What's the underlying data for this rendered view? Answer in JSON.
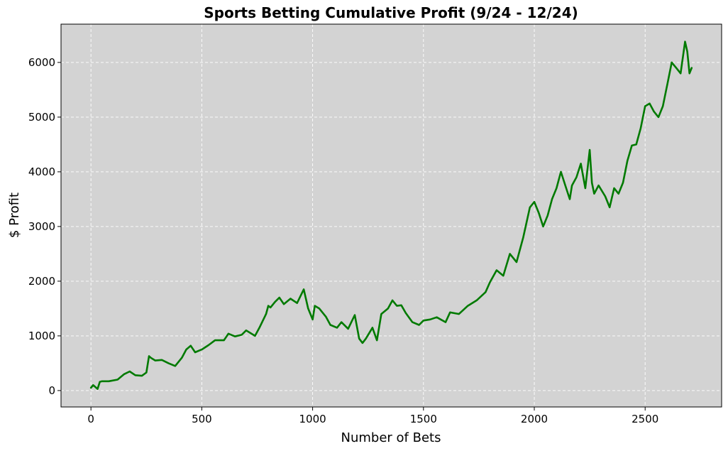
{
  "chart_data": {
    "type": "line",
    "title": "Sports Betting Cumulative Profit (9/24 - 12/24)",
    "xlabel": "Number of Bets",
    "ylabel": "$ Profit",
    "xlim": [
      -135,
      2845
    ],
    "ylim": [
      -300,
      6700
    ],
    "xticks": [
      0,
      500,
      1000,
      1500,
      2000,
      2500
    ],
    "yticks": [
      0,
      1000,
      2000,
      3000,
      4000,
      5000,
      6000
    ],
    "grid": true,
    "legend": "none",
    "colors": {
      "plot_background": "#d3d3d3",
      "line": "#007a00",
      "grid": "#ffffff"
    },
    "series": [
      {
        "x": [
          0,
          10,
          30,
          40,
          50,
          80,
          120,
          150,
          175,
          200,
          230,
          250,
          262,
          270,
          290,
          320,
          350,
          380,
          410,
          430,
          450,
          470,
          500,
          530,
          560,
          600,
          620,
          650,
          680,
          700,
          740,
          760,
          790,
          800,
          810,
          830,
          850,
          870,
          900,
          930,
          960,
          980,
          1000,
          1010,
          1030,
          1060,
          1080,
          1110,
          1130,
          1160,
          1190,
          1210,
          1225,
          1240,
          1270,
          1290,
          1310,
          1340,
          1360,
          1380,
          1400,
          1420,
          1450,
          1480,
          1500,
          1530,
          1560,
          1600,
          1620,
          1660,
          1700,
          1740,
          1780,
          1800,
          1830,
          1860,
          1890,
          1920,
          1950,
          1980,
          2000,
          2020,
          2040,
          2060,
          2080,
          2100,
          2120,
          2140,
          2160,
          2170,
          2190,
          2210,
          2230,
          2250,
          2260,
          2270,
          2290,
          2320,
          2340,
          2360,
          2380,
          2400,
          2420,
          2440,
          2460,
          2480,
          2500,
          2520,
          2540,
          2560,
          2580,
          2600,
          2620,
          2640,
          2660,
          2680,
          2690,
          2700,
          2710
        ],
        "y": [
          50,
          100,
          30,
          160,
          170,
          170,
          200,
          300,
          350,
          280,
          270,
          330,
          630,
          600,
          550,
          560,
          500,
          450,
          600,
          750,
          820,
          700,
          750,
          830,
          920,
          920,
          1040,
          990,
          1020,
          1100,
          1000,
          1150,
          1400,
          1550,
          1520,
          1620,
          1700,
          1580,
          1680,
          1600,
          1850,
          1500,
          1300,
          1550,
          1500,
          1350,
          1200,
          1150,
          1250,
          1130,
          1380,
          950,
          870,
          950,
          1150,
          920,
          1400,
          1500,
          1650,
          1550,
          1560,
          1420,
          1250,
          1200,
          1280,
          1300,
          1340,
          1250,
          1430,
          1400,
          1550,
          1650,
          1800,
          1980,
          2200,
          2100,
          2500,
          2350,
          2800,
          3350,
          3450,
          3250,
          3000,
          3200,
          3500,
          3700,
          4000,
          3750,
          3500,
          3750,
          3900,
          4150,
          3700,
          4400,
          3800,
          3600,
          3750,
          3550,
          3350,
          3700,
          3600,
          3800,
          4200,
          4480,
          4500,
          4800,
          5200,
          5250,
          5100,
          5000,
          5200,
          5600,
          6000,
          5900,
          5800,
          6380,
          6200,
          5800,
          5900
        ]
      }
    ]
  }
}
